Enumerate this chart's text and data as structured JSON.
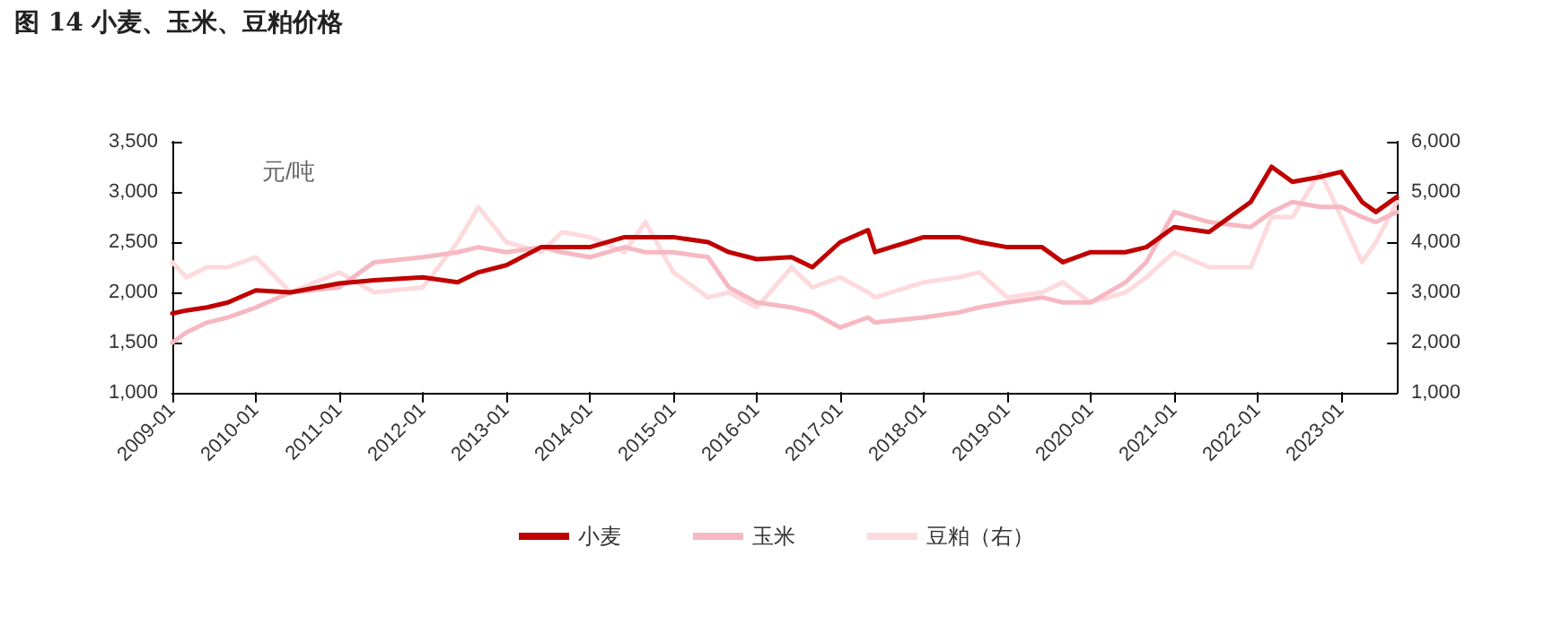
{
  "chart_data": {
    "type": "line",
    "title": "图 14  小麦、玉米、豆粕价格",
    "ylabel": "元/吨",
    "x": [
      "2009-01",
      "2009-03",
      "2009-06",
      "2009-09",
      "2010-01",
      "2010-06",
      "2011-01",
      "2011-06",
      "2012-01",
      "2012-06",
      "2012-09",
      "2013-01",
      "2013-06",
      "2013-09",
      "2014-01",
      "2014-06",
      "2014-09",
      "2015-01",
      "2015-06",
      "2015-09",
      "2016-01",
      "2016-06",
      "2016-09",
      "2017-01",
      "2017-05",
      "2017-06",
      "2018-01",
      "2018-06",
      "2018-09",
      "2019-01",
      "2019-06",
      "2019-09",
      "2020-01",
      "2020-06",
      "2020-09",
      "2021-01",
      "2021-06",
      "2021-12",
      "2022-03",
      "2022-06",
      "2022-10",
      "2023-01",
      "2023-04",
      "2023-06",
      "2023-09"
    ],
    "series": [
      {
        "name": "小麦",
        "color": "#c00000",
        "values": [
          1790,
          1820,
          1850,
          1900,
          2020,
          2000,
          2090,
          2120,
          2150,
          2100,
          2200,
          2270,
          2450,
          2450,
          2450,
          2550,
          2550,
          2550,
          2500,
          2400,
          2330,
          2350,
          2250,
          2500,
          2620,
          2400,
          2550,
          2550,
          2500,
          2450,
          2450,
          2300,
          2400,
          2400,
          2450,
          2650,
          2600,
          2900,
          3250,
          3100,
          3150,
          3200,
          2900,
          2800,
          2950
        ]
      },
      {
        "name": "玉米",
        "color": "#f6b8c2",
        "values": [
          1500,
          1600,
          1700,
          1750,
          1850,
          2000,
          2050,
          2300,
          2350,
          2400,
          2450,
          2400,
          2450,
          2400,
          2350,
          2450,
          2400,
          2400,
          2350,
          2050,
          1900,
          1850,
          1800,
          1650,
          1750,
          1700,
          1750,
          1800,
          1850,
          1900,
          1950,
          1900,
          1900,
          2100,
          2300,
          2800,
          2700,
          2650,
          2800,
          2900,
          2850,
          2850,
          2750,
          2700,
          2800
        ]
      },
      {
        "name": "豆粕（右）",
        "color": "#fddadd",
        "axis": "y2",
        "values": [
          3600,
          3300,
          3500,
          3500,
          3700,
          3000,
          3400,
          3000,
          3100,
          4000,
          4700,
          4000,
          3800,
          4200,
          4100,
          3800,
          4400,
          3400,
          2900,
          3000,
          2700,
          3500,
          3100,
          3300,
          3000,
          2900,
          3200,
          3300,
          3400,
          2900,
          3000,
          3200,
          2800,
          3000,
          3300,
          3800,
          3500,
          3500,
          4500,
          4500,
          5400,
          4500,
          3600,
          4000,
          4800
        ]
      }
    ],
    "xlim": [
      "2009-01",
      "2023-09"
    ],
    "xticks": [
      "2009-01",
      "2010-01",
      "2011-01",
      "2012-01",
      "2013-01",
      "2014-01",
      "2015-01",
      "2016-01",
      "2017-01",
      "2018-01",
      "2019-01",
      "2020-01",
      "2021-01",
      "2022-01",
      "2023-01"
    ],
    "ylim": [
      1000,
      3500
    ],
    "yticks": [
      {
        "value": 1000,
        "label": "1,000"
      },
      {
        "value": 1500,
        "label": "1,500"
      },
      {
        "value": 2000,
        "label": "2,000"
      },
      {
        "value": 2500,
        "label": "2,500"
      },
      {
        "value": 3000,
        "label": "3,000"
      },
      {
        "value": 3500,
        "label": "3,500"
      }
    ],
    "y2lim": [
      1000,
      6000
    ],
    "y2ticks": [
      {
        "value": 1000,
        "label": "1,000"
      },
      {
        "value": 2000,
        "label": "2,000"
      },
      {
        "value": 3000,
        "label": "3,000"
      },
      {
        "value": 4000,
        "label": "4,000"
      },
      {
        "value": 5000,
        "label": "5,000"
      },
      {
        "value": 6000,
        "label": "6,000"
      }
    ],
    "grid": false,
    "legend": "bottom",
    "marker": "none",
    "line_style": "solid"
  }
}
